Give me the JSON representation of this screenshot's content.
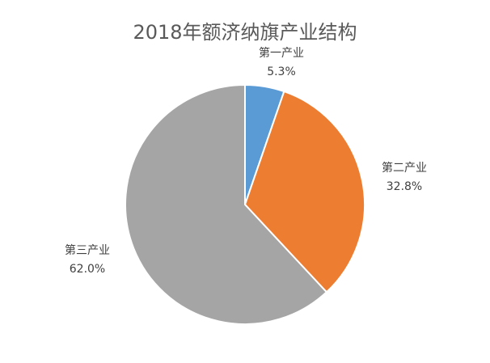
{
  "chart_data": {
    "type": "pie",
    "title": "2018年额济纳旗产业结构",
    "slices": [
      {
        "name": "第一产业",
        "value": 5.3,
        "label": "5.3%",
        "color": "#5B9BD5"
      },
      {
        "name": "第二产业",
        "value": 32.8,
        "label": "32.8%",
        "color": "#ED7D31"
      },
      {
        "name": "第三产业",
        "value": 62.0,
        "label": "62.0%",
        "color": "#A5A5A5"
      }
    ],
    "start_angle": "12 o'clock",
    "direction": "clockwise",
    "legend": "none"
  }
}
